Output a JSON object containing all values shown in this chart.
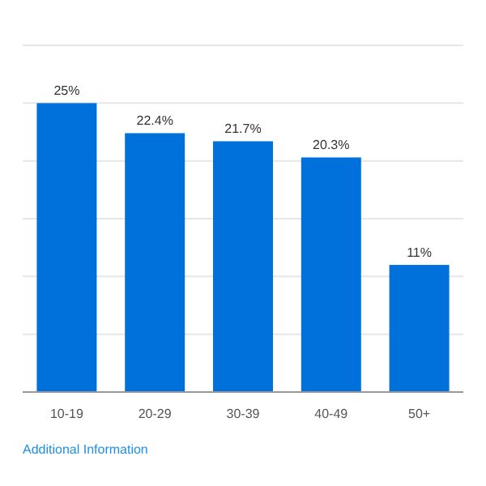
{
  "chart_data": {
    "type": "bar",
    "categories": [
      "10-19",
      "20-29",
      "30-39",
      "40-49",
      "50+"
    ],
    "values": [
      25,
      22.4,
      21.7,
      20.3,
      11
    ],
    "color": "#0071db",
    "value_labels": [
      "25%",
      "22.4%",
      "21.7%",
      "20.3%",
      "11%"
    ],
    "ylim": [
      0,
      30
    ],
    "yticks": [
      {
        "value": 0,
        "label": null
      },
      {
        "value": 5,
        "label": null
      },
      {
        "value": 10,
        "label": null
      },
      {
        "value": 15,
        "label": null
      },
      {
        "value": 20,
        "label": null
      },
      {
        "value": 25,
        "label": null
      },
      {
        "value": 30,
        "label": null
      }
    ],
    "grid": "y",
    "tick_labels": "x",
    "annotations": [
      "Additional Information"
    ]
  }
}
